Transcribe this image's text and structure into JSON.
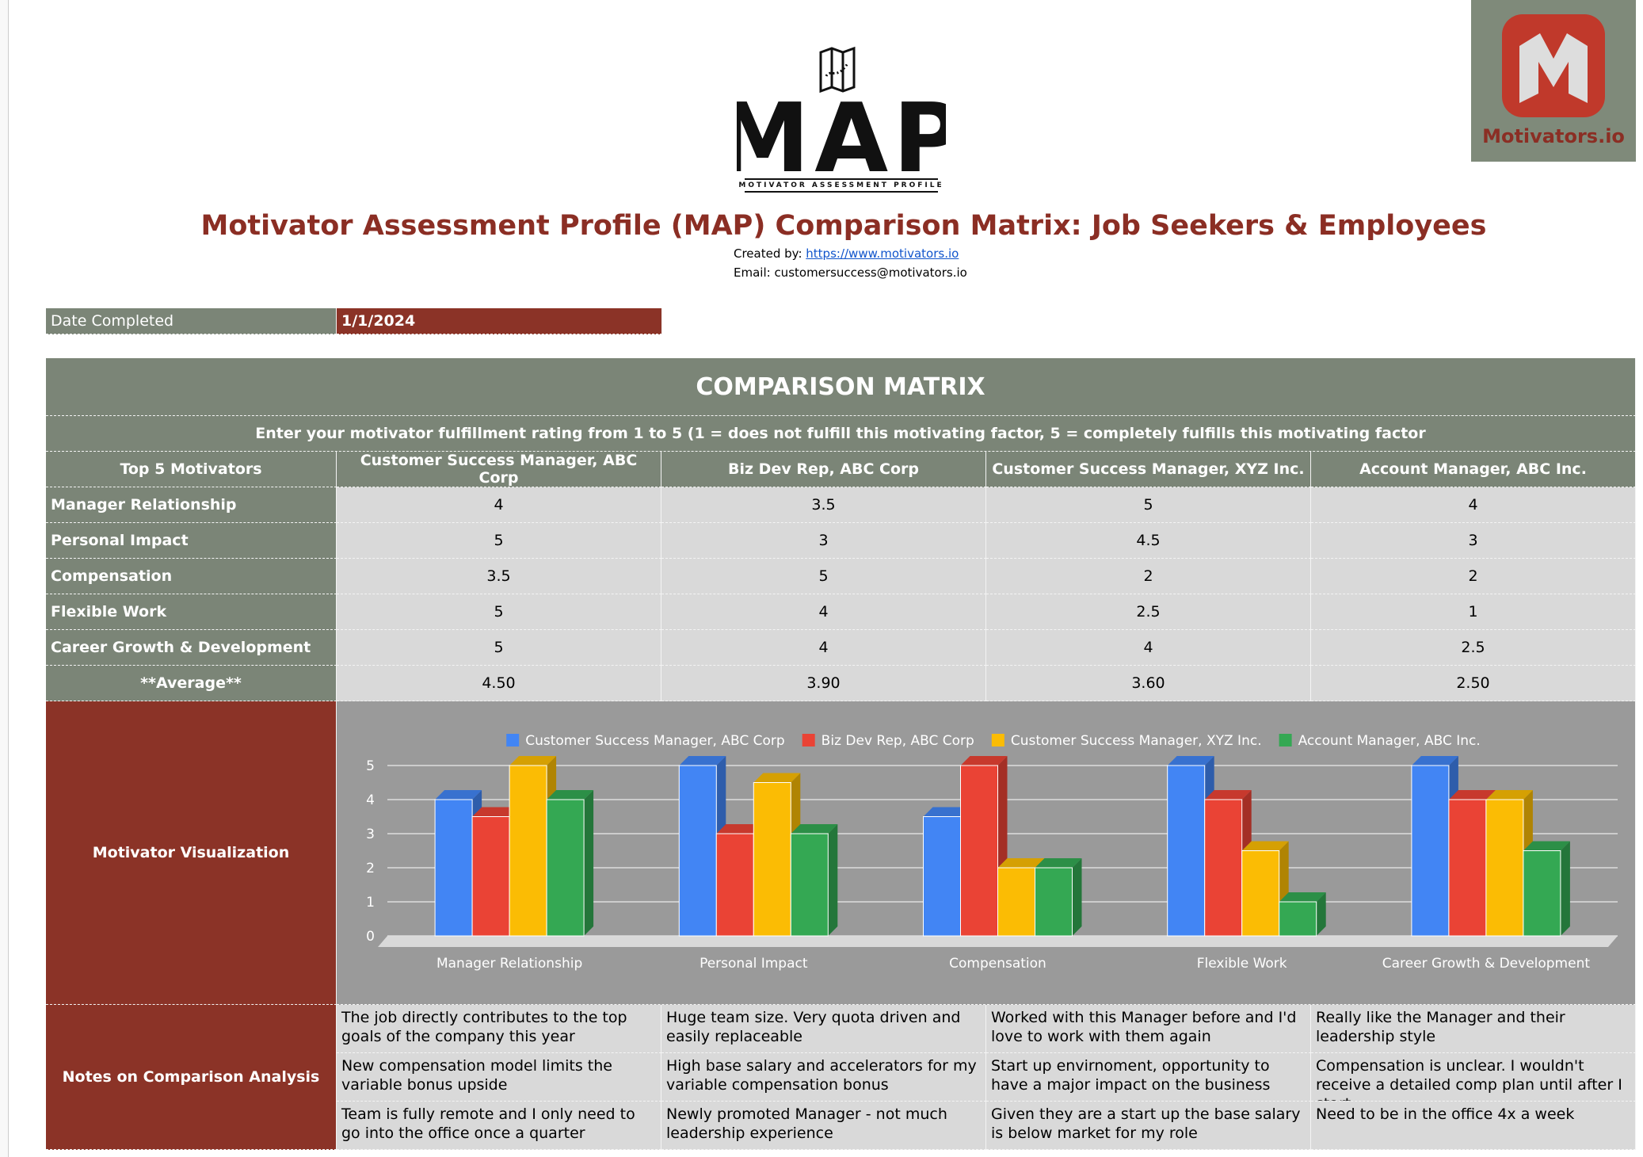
{
  "header": {
    "logo_text": "MAP",
    "logo_subtitle": "MOTIVATOR ASSESSMENT PROFILE",
    "brand": "Motivators.io",
    "title": "Motivator Assessment Profile (MAP) Comparison Matrix: Job Seekers & Employees",
    "created_by_label": "Created by:",
    "created_by_link": "https://www.motivators.io",
    "email": "Email: customersuccess@motivators.io"
  },
  "date": {
    "label": "Date Completed",
    "value": "1/1/2024"
  },
  "matrix": {
    "title": "COMPARISON MATRIX",
    "instructions": "Enter your motivator fulfillment rating from 1 to 5 (1 = does not fulfill this motivating factor, 5 = completely fulfills this motivating factor",
    "header": [
      "Top 5 Motivators",
      "Customer Success Manager, ABC Corp",
      "Biz Dev Rep, ABC Corp",
      "Customer Success Manager, XYZ Inc.",
      "Account Manager, ABC Inc."
    ],
    "rows": [
      [
        "Manager Relationship",
        4,
        3.5,
        5,
        4
      ],
      [
        "Personal Impact",
        5,
        3,
        4.5,
        3
      ],
      [
        "Compensation",
        3.5,
        5,
        2,
        2
      ],
      [
        "Flexible Work",
        5,
        4,
        2.5,
        1
      ],
      [
        "Career Growth & Development",
        5,
        4,
        4,
        2.5
      ]
    ],
    "average": {
      "label": "**Average**",
      "values": [
        4.5,
        3.9,
        3.6,
        2.5
      ],
      "value_labels": [
        "4.50",
        "3.90",
        "3.60",
        "2.50"
      ]
    }
  },
  "visualization_label": "Motivator Visualization",
  "chart_data": {
    "type": "bar",
    "categories": [
      "Manager Relationship",
      "Personal Impact",
      "Compensation",
      "Flexible Work",
      "Career Growth & Development"
    ],
    "series": [
      {
        "name": "Customer Success Manager, ABC Corp",
        "color": "#4285f4",
        "values": [
          4,
          5,
          3.5,
          5,
          5
        ]
      },
      {
        "name": "Biz Dev Rep, ABC Corp",
        "color": "#ea4335",
        "values": [
          3.5,
          3,
          5,
          4,
          4
        ]
      },
      {
        "name": "Customer Success Manager, XYZ Inc.",
        "color": "#fbbc04",
        "values": [
          5,
          4.5,
          2,
          2.5,
          4
        ]
      },
      {
        "name": "Account Manager, ABC Inc.",
        "color": "#34a853",
        "values": [
          4,
          3,
          2,
          1,
          2.5
        ]
      }
    ],
    "ylim": [
      0,
      5
    ],
    "yticks": [
      0,
      1,
      2,
      3,
      4,
      5
    ],
    "grid": true,
    "legend": "top"
  },
  "notes": {
    "label": "Notes on Comparison Analysis",
    "rows": [
      [
        "The job directly contributes to the top goals of the company this year",
        "Huge team size. Very quota driven and easily replaceable",
        "Worked with this Manager before and I'd love to work with them again",
        "Really like the Manager and their leadership style"
      ],
      [
        "New compensation model limits the variable bonus upside",
        "High base salary and accelerators for my variable compensation bonus",
        "Start up envirnoment, opportunity to have a major impact on the business",
        "Compensation is unclear. I wouldn't receive a detailed comp plan until after I start"
      ],
      [
        "Team is fully remote and I only need to go into the office once a quarter",
        "Newly promoted Manager - not much leadership experience",
        "Given they are a start up the base salary is below market for my role",
        "Need to be in the office 4x a week"
      ]
    ]
  }
}
